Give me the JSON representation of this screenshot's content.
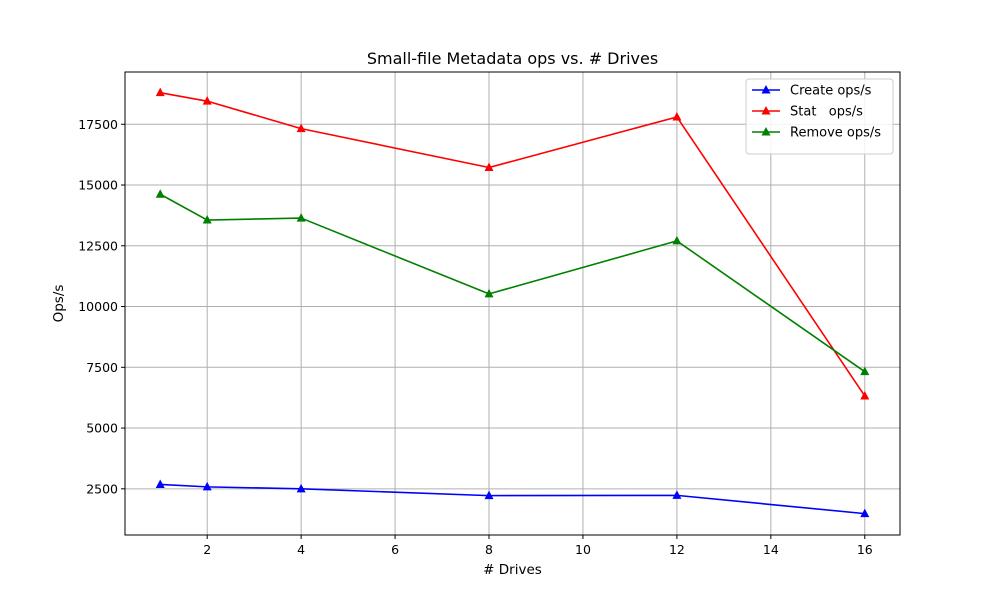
{
  "chart_data": {
    "type": "line",
    "title": "Small-file Metadata ops vs. # Drives",
    "xlabel": "# Drives",
    "ylabel": "Ops/s",
    "x": [
      1,
      2,
      4,
      8,
      12,
      16
    ],
    "xlim": [
      0.25,
      16.75
    ],
    "ylim": [
      600,
      19650
    ],
    "xticks": [
      2,
      4,
      6,
      8,
      10,
      12,
      14,
      16
    ],
    "yticks": [
      2500,
      5000,
      7500,
      10000,
      12500,
      15000,
      17500
    ],
    "grid": true,
    "legend_position": "top-right",
    "marker": "triangle-up",
    "series": [
      {
        "name": "Create ops/s",
        "color": "#0000ff",
        "values": [
          2680,
          2580,
          2500,
          2220,
          2230,
          1480
        ]
      },
      {
        "name": "Stat   ops/s",
        "color": "#ff0000",
        "values": [
          18800,
          18450,
          17320,
          15720,
          17800,
          6320
        ]
      },
      {
        "name": "Remove ops/s",
        "color": "#008000",
        "values": [
          14620,
          13560,
          13640,
          10520,
          12700,
          7320
        ]
      }
    ]
  }
}
